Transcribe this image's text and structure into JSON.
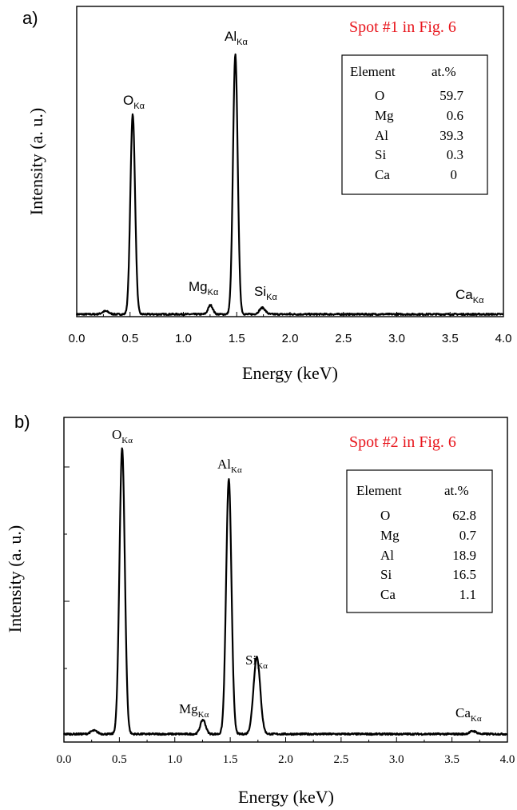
{
  "chart_data": [
    {
      "panel_label": "a)",
      "type": "line",
      "title": "Spot #1 in Fig. 6",
      "title_color": "#e8141b",
      "xlabel": "Energy (keV)",
      "ylabel": "Intensity (a. u.)",
      "xlim": [
        0.0,
        4.0
      ],
      "xticks": [
        "0.0",
        "0.5",
        "1.0",
        "1.5",
        "2.0",
        "2.5",
        "3.0",
        "3.5",
        "4.0"
      ],
      "show_y_tick_labels": false,
      "grid": false,
      "peaks": [
        {
          "element": "O",
          "line": "Kα",
          "energy": 0.525,
          "intensity": 0.77
        },
        {
          "element": "Mg",
          "line": "Kα",
          "energy": 1.254,
          "intensity": 0.035
        },
        {
          "element": "Al",
          "line": "Kα",
          "energy": 1.487,
          "intensity": 1.0
        },
        {
          "element": "Si",
          "line": "Kα",
          "energy": 1.74,
          "intensity": 0.025
        },
        {
          "element": "Ca",
          "line": "Kα",
          "energy": 3.69,
          "intensity": 0.0
        }
      ],
      "peak_labels": [
        {
          "base": "O",
          "sub": "Kα"
        },
        {
          "base": "Mg",
          "sub": "Kα"
        },
        {
          "base": "Al",
          "sub": "Kα"
        },
        {
          "base": "Si",
          "sub": "Kα"
        },
        {
          "base": "Ca",
          "sub": "Kα"
        }
      ],
      "composition_table": {
        "headers": [
          "Element",
          "at.%"
        ],
        "rows": [
          [
            "O",
            "59.7"
          ],
          [
            "Mg",
            "0.6"
          ],
          [
            "Al",
            "39.3"
          ],
          [
            "Si",
            "0.3"
          ],
          [
            "Ca",
            "0"
          ]
        ]
      }
    },
    {
      "panel_label": "b)",
      "type": "line",
      "title": "Spot #2 in Fig. 6",
      "title_color": "#e8141b",
      "xlabel": "Energy (keV)",
      "ylabel": "Intensity (a. u.)",
      "xlim": [
        0.0,
        4.0
      ],
      "xticks": [
        "0.0",
        "0.5",
        "1.0",
        "1.5",
        "2.0",
        "2.5",
        "3.0",
        "3.5",
        "4.0"
      ],
      "show_y_tick_labels": false,
      "grid": false,
      "peaks": [
        {
          "element": "O",
          "line": "Kα",
          "energy": 0.525,
          "intensity": 1.0
        },
        {
          "element": "Mg",
          "line": "Kα",
          "energy": 1.254,
          "intensity": 0.05
        },
        {
          "element": "Al",
          "line": "Kα",
          "energy": 1.487,
          "intensity": 0.89
        },
        {
          "element": "Si",
          "line": "Kα",
          "energy": 1.74,
          "intensity": 0.27
        },
        {
          "element": "Ca",
          "line": "Kα",
          "energy": 3.69,
          "intensity": 0.01
        }
      ],
      "peak_labels": [
        {
          "base": "O",
          "sub": "Kα"
        },
        {
          "base": "Mg",
          "sub": "Kα"
        },
        {
          "base": "Al",
          "sub": "Kα"
        },
        {
          "base": "Si",
          "sub": "Kα"
        },
        {
          "base": "Ca",
          "sub": "Kα"
        }
      ],
      "composition_table": {
        "headers": [
          "Element",
          "at.%"
        ],
        "rows": [
          [
            "O",
            "62.8"
          ],
          [
            "Mg",
            "0.7"
          ],
          [
            "Al",
            "18.9"
          ],
          [
            "Si",
            "16.5"
          ],
          [
            "Ca",
            "1.1"
          ]
        ]
      }
    }
  ]
}
